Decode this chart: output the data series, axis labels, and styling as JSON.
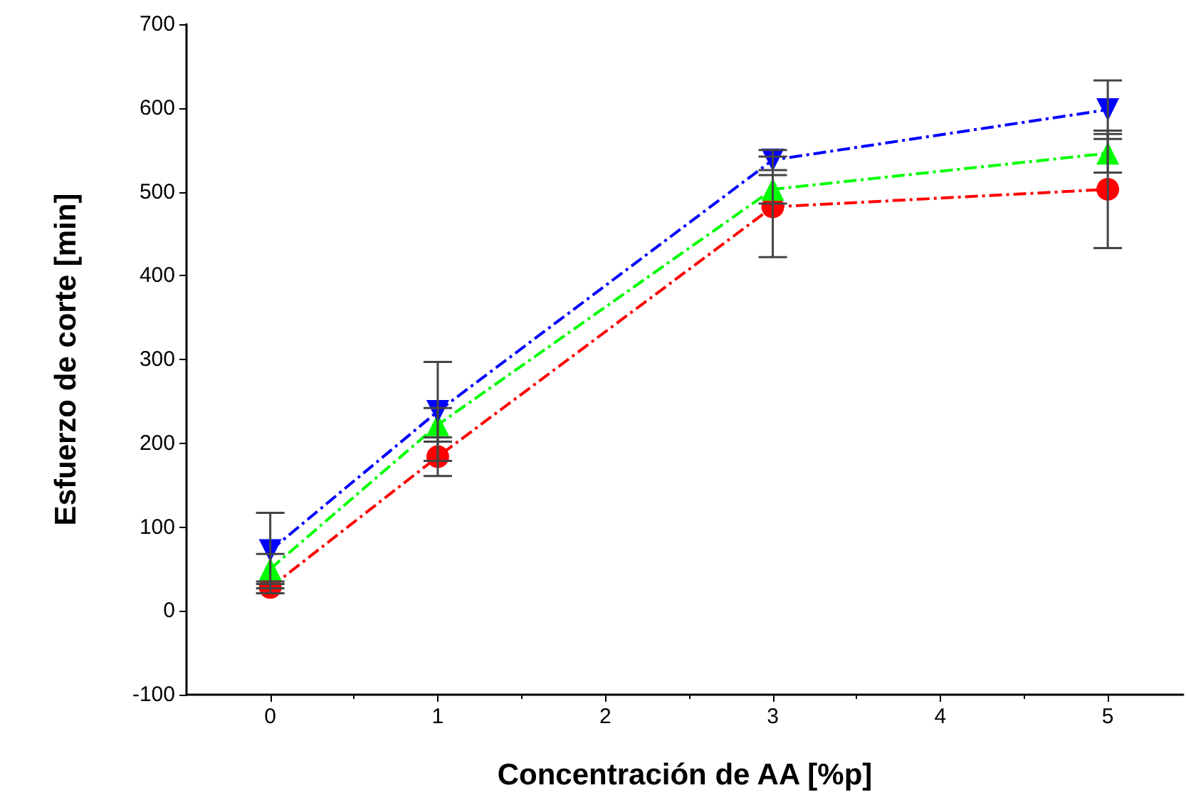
{
  "chart_data": {
    "type": "line",
    "xlabel": "Concentración de AA [%p]",
    "ylabel": "Esfuerzo de corte [min]",
    "x": [
      0,
      1,
      3,
      5
    ],
    "xlim": [
      -0.5,
      5.45
    ],
    "xticks": [
      0,
      1,
      2,
      3,
      4,
      5
    ],
    "ylim": [
      -100,
      700
    ],
    "yticks": [
      -100,
      0,
      100,
      200,
      300,
      400,
      500,
      600,
      700
    ],
    "grid": false,
    "line_style": "dashed",
    "series": [
      {
        "color": "#ff0000",
        "marker": "circle",
        "values": [
          28,
          184,
          482,
          503
        ],
        "errors": [
          7,
          23,
          60,
          70
        ]
      },
      {
        "color": "#00ff00",
        "marker": "triangle",
        "values": [
          50,
          222,
          503,
          546
        ],
        "errors": [
          18,
          20,
          17,
          23
        ]
      },
      {
        "color": "#0000ff",
        "marker": "triangle",
        "values": [
          72,
          238,
          538,
          598
        ],
        "errors": [
          45,
          59,
          12,
          35
        ]
      }
    ]
  }
}
